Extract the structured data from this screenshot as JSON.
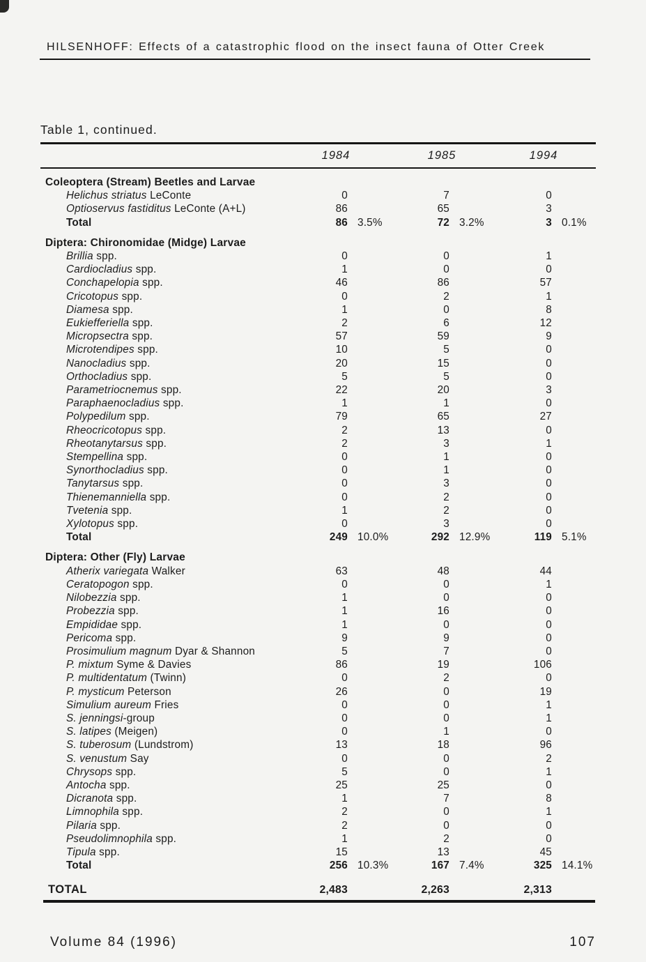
{
  "page": {
    "running_head": "HILSENHOFF: Effects of a catastrophic flood on the insect fauna of Otter Creek",
    "table_caption": "Table 1, continued.",
    "footer": {
      "volume": "Volume 84 (1996)",
      "page_number": "107"
    },
    "colors": {
      "paper": "#f4f4f2",
      "ink": "#1c1c1c",
      "rule": "#151515"
    }
  },
  "table": {
    "year_headers": [
      "1984",
      "1985",
      "1994"
    ],
    "sections": [
      {
        "header": "Coleoptera (Stream) Beetles and Larvae",
        "rows": [
          {
            "sp": "Helichus striatus",
            "rest": " LeConte",
            "values": [
              "0",
              "7",
              "0"
            ]
          },
          {
            "sp": "Optioservus fastiditus",
            "rest": " LeConte (A+L)",
            "values": [
              "86",
              "65",
              "3"
            ]
          }
        ],
        "total": {
          "label": "Total",
          "values": [
            "86",
            "72",
            "3"
          ],
          "pcts": [
            "3.5%",
            "3.2%",
            "0.1%"
          ]
        }
      },
      {
        "header": "Diptera: Chironomidae (Midge) Larvae",
        "rows": [
          {
            "sp": "Brillia",
            "rest": " spp.",
            "values": [
              "0",
              "0",
              "1"
            ]
          },
          {
            "sp": "Cardiocladius",
            "rest": " spp.",
            "values": [
              "1",
              "0",
              "0"
            ]
          },
          {
            "sp": "Conchapelopia",
            "rest": " spp.",
            "values": [
              "46",
              "86",
              "57"
            ]
          },
          {
            "sp": "Cricotopus",
            "rest": " spp.",
            "values": [
              "0",
              "2",
              "1"
            ]
          },
          {
            "sp": "Diamesa",
            "rest": " spp.",
            "values": [
              "1",
              "0",
              "8"
            ]
          },
          {
            "sp": "Eukiefferiella",
            "rest": " spp.",
            "values": [
              "2",
              "6",
              "12"
            ]
          },
          {
            "sp": "Micropsectra",
            "rest": " spp.",
            "values": [
              "57",
              "59",
              "9"
            ]
          },
          {
            "sp": "Microtendipes",
            "rest": " spp.",
            "values": [
              "10",
              "5",
              "0"
            ]
          },
          {
            "sp": "Nanocladius",
            "rest": " spp.",
            "values": [
              "20",
              "15",
              "0"
            ]
          },
          {
            "sp": "Orthocladius",
            "rest": " spp.",
            "values": [
              "5",
              "5",
              "0"
            ]
          },
          {
            "sp": "Parametriocnemus",
            "rest": " spp.",
            "values": [
              "22",
              "20",
              "3"
            ]
          },
          {
            "sp": "Paraphaenocladius",
            "rest": " spp.",
            "values": [
              "1",
              "1",
              "0"
            ]
          },
          {
            "sp": "Polypedilum",
            "rest": " spp.",
            "values": [
              "79",
              "65",
              "27"
            ]
          },
          {
            "sp": "Rheocricotopus",
            "rest": " spp.",
            "values": [
              "2",
              "13",
              "0"
            ]
          },
          {
            "sp": "Rheotanytarsus",
            "rest": " spp.",
            "values": [
              "2",
              "3",
              "1"
            ]
          },
          {
            "sp": "Stempellina",
            "rest": " spp.",
            "values": [
              "0",
              "1",
              "0"
            ]
          },
          {
            "sp": "Synorthocladius",
            "rest": " spp.",
            "values": [
              "0",
              "1",
              "0"
            ]
          },
          {
            "sp": "Tanytarsus",
            "rest": " spp.",
            "values": [
              "0",
              "3",
              "0"
            ]
          },
          {
            "sp": "Thienemanniella",
            "rest": " spp.",
            "values": [
              "0",
              "2",
              "0"
            ]
          },
          {
            "sp": "Tvetenia",
            "rest": " spp.",
            "values": [
              "1",
              "2",
              "0"
            ]
          },
          {
            "sp": "Xylotopus",
            "rest": " spp.",
            "values": [
              "0",
              "3",
              "0"
            ]
          }
        ],
        "total": {
          "label": "Total",
          "values": [
            "249",
            "292",
            "119"
          ],
          "pcts": [
            "10.0%",
            "12.9%",
            "5.1%"
          ]
        }
      },
      {
        "header": "Diptera: Other (Fly) Larvae",
        "rows": [
          {
            "sp": "Atherix variegata",
            "rest": " Walker",
            "values": [
              "63",
              "48",
              "44"
            ]
          },
          {
            "sp": "Ceratopogon",
            "rest": " spp.",
            "values": [
              "0",
              "0",
              "1"
            ]
          },
          {
            "sp": "Nilobezzia",
            "rest": " spp.",
            "values": [
              "1",
              "0",
              "0"
            ]
          },
          {
            "sp": "Probezzia",
            "rest": " spp.",
            "values": [
              "1",
              "16",
              "0"
            ]
          },
          {
            "sp": "Empididae",
            "rest": " spp.",
            "values": [
              "1",
              "0",
              "0"
            ]
          },
          {
            "sp": "Pericoma",
            "rest": " spp.",
            "values": [
              "9",
              "9",
              "0"
            ]
          },
          {
            "sp": "Prosimulium magnum",
            "rest": " Dyar & Shannon",
            "values": [
              "5",
              "7",
              "0"
            ]
          },
          {
            "sp": "P. mixtum",
            "rest": " Syme & Davies",
            "values": [
              "86",
              "19",
              "106"
            ]
          },
          {
            "sp": "P. multidentatum",
            "rest": " (Twinn)",
            "values": [
              "0",
              "2",
              "0"
            ]
          },
          {
            "sp": "P. mysticum",
            "rest": " Peterson",
            "values": [
              "26",
              "0",
              "19"
            ]
          },
          {
            "sp": "Simulium aureum",
            "rest": " Fries",
            "values": [
              "0",
              "0",
              "1"
            ]
          },
          {
            "sp": "S. jenningsi",
            "rest": "-group",
            "values": [
              "0",
              "0",
              "1"
            ]
          },
          {
            "sp": "S. latipes",
            "rest": " (Meigen)",
            "values": [
              "0",
              "1",
              "0"
            ]
          },
          {
            "sp": "S. tuberosum",
            "rest": " (Lundstrom)",
            "values": [
              "13",
              "18",
              "96"
            ]
          },
          {
            "sp": "S. venustum",
            "rest": " Say",
            "values": [
              "0",
              "0",
              "2"
            ]
          },
          {
            "sp": "Chrysops",
            "rest": " spp.",
            "values": [
              "5",
              "0",
              "1"
            ]
          },
          {
            "sp": "Antocha",
            "rest": " spp.",
            "values": [
              "25",
              "25",
              "0"
            ]
          },
          {
            "sp": "Dicranota",
            "rest": " spp.",
            "values": [
              "1",
              "7",
              "8"
            ]
          },
          {
            "sp": "Limnophila",
            "rest": " spp.",
            "values": [
              "2",
              "0",
              "1"
            ]
          },
          {
            "sp": "Pilaria",
            "rest": " spp.",
            "values": [
              "2",
              "0",
              "0"
            ]
          },
          {
            "sp": "Pseudolimnophila",
            "rest": " spp.",
            "values": [
              "1",
              "2",
              "0"
            ]
          },
          {
            "sp": "Tipula",
            "rest": " spp.",
            "values": [
              "15",
              "13",
              "45"
            ]
          }
        ],
        "total": {
          "label": "Total",
          "values": [
            "256",
            "167",
            "325"
          ],
          "pcts": [
            "10.3%",
            "7.4%",
            "14.1%"
          ]
        }
      }
    ],
    "grand_total": {
      "label": "TOTAL",
      "values": [
        "2,483",
        "2,263",
        "2,313"
      ]
    }
  }
}
